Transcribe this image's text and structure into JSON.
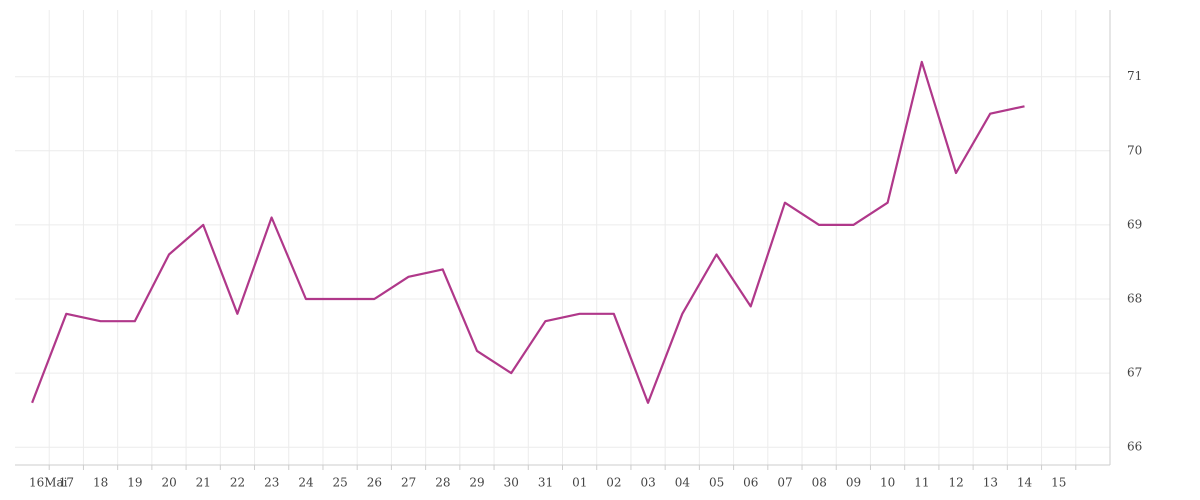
{
  "chart_data": {
    "type": "line",
    "x": [
      -0.5,
      0.5,
      1.5,
      2.5,
      3.5,
      4.5,
      5.5,
      6.5,
      7.5,
      8.5,
      9.5,
      10.5,
      11.5,
      12.5,
      13.5,
      14.5,
      15.5,
      16.5,
      17.5,
      18.5,
      19.5,
      20.5,
      21.5,
      22.5,
      23.5,
      24.5,
      25.5,
      26.5,
      27.5,
      28.5
    ],
    "series": [
      {
        "color": "#b0388a",
        "values": [
          66.6,
          67.8,
          67.7,
          67.7,
          68.6,
          69.0,
          67.8,
          69.1,
          68.0,
          68.0,
          68.0,
          68.3,
          68.4,
          67.3,
          67.0,
          67.7,
          67.8,
          67.8,
          66.6,
          67.8,
          68.6,
          67.9,
          69.3,
          69.0,
          69.0,
          69.3,
          71.2,
          69.7,
          70.5,
          70.6
        ]
      }
    ],
    "xlim": [
      -1,
      31
    ],
    "xticks": [
      {
        "value": 0,
        "label": "16Mai"
      },
      {
        "value": 1,
        "label": "17"
      },
      {
        "value": 2,
        "label": "18"
      },
      {
        "value": 3,
        "label": "19"
      },
      {
        "value": 4,
        "label": "20"
      },
      {
        "value": 5,
        "label": "21"
      },
      {
        "value": 6,
        "label": "22"
      },
      {
        "value": 7,
        "label": "23"
      },
      {
        "value": 8,
        "label": "24"
      },
      {
        "value": 9,
        "label": "25"
      },
      {
        "value": 10,
        "label": "26"
      },
      {
        "value": 11,
        "label": "27"
      },
      {
        "value": 12,
        "label": "28"
      },
      {
        "value": 13,
        "label": "29"
      },
      {
        "value": 14,
        "label": "30"
      },
      {
        "value": 15,
        "label": "31"
      },
      {
        "value": 16,
        "label": "01"
      },
      {
        "value": 17,
        "label": "02"
      },
      {
        "value": 18,
        "label": "03"
      },
      {
        "value": 19,
        "label": "04"
      },
      {
        "value": 20,
        "label": "05"
      },
      {
        "value": 21,
        "label": "06"
      },
      {
        "value": 22,
        "label": "07"
      },
      {
        "value": 23,
        "label": "08"
      },
      {
        "value": 24,
        "label": "09"
      },
      {
        "value": 25,
        "label": "10"
      },
      {
        "value": 26,
        "label": "11"
      },
      {
        "value": 27,
        "label": "12"
      },
      {
        "value": 28,
        "label": "13"
      },
      {
        "value": 29,
        "label": "14"
      },
      {
        "value": 30,
        "label": "15"
      }
    ],
    "ylim": [
      65.76,
      71.9
    ],
    "yticks": [
      66,
      67,
      68,
      69,
      70,
      71
    ],
    "grid": true
  }
}
